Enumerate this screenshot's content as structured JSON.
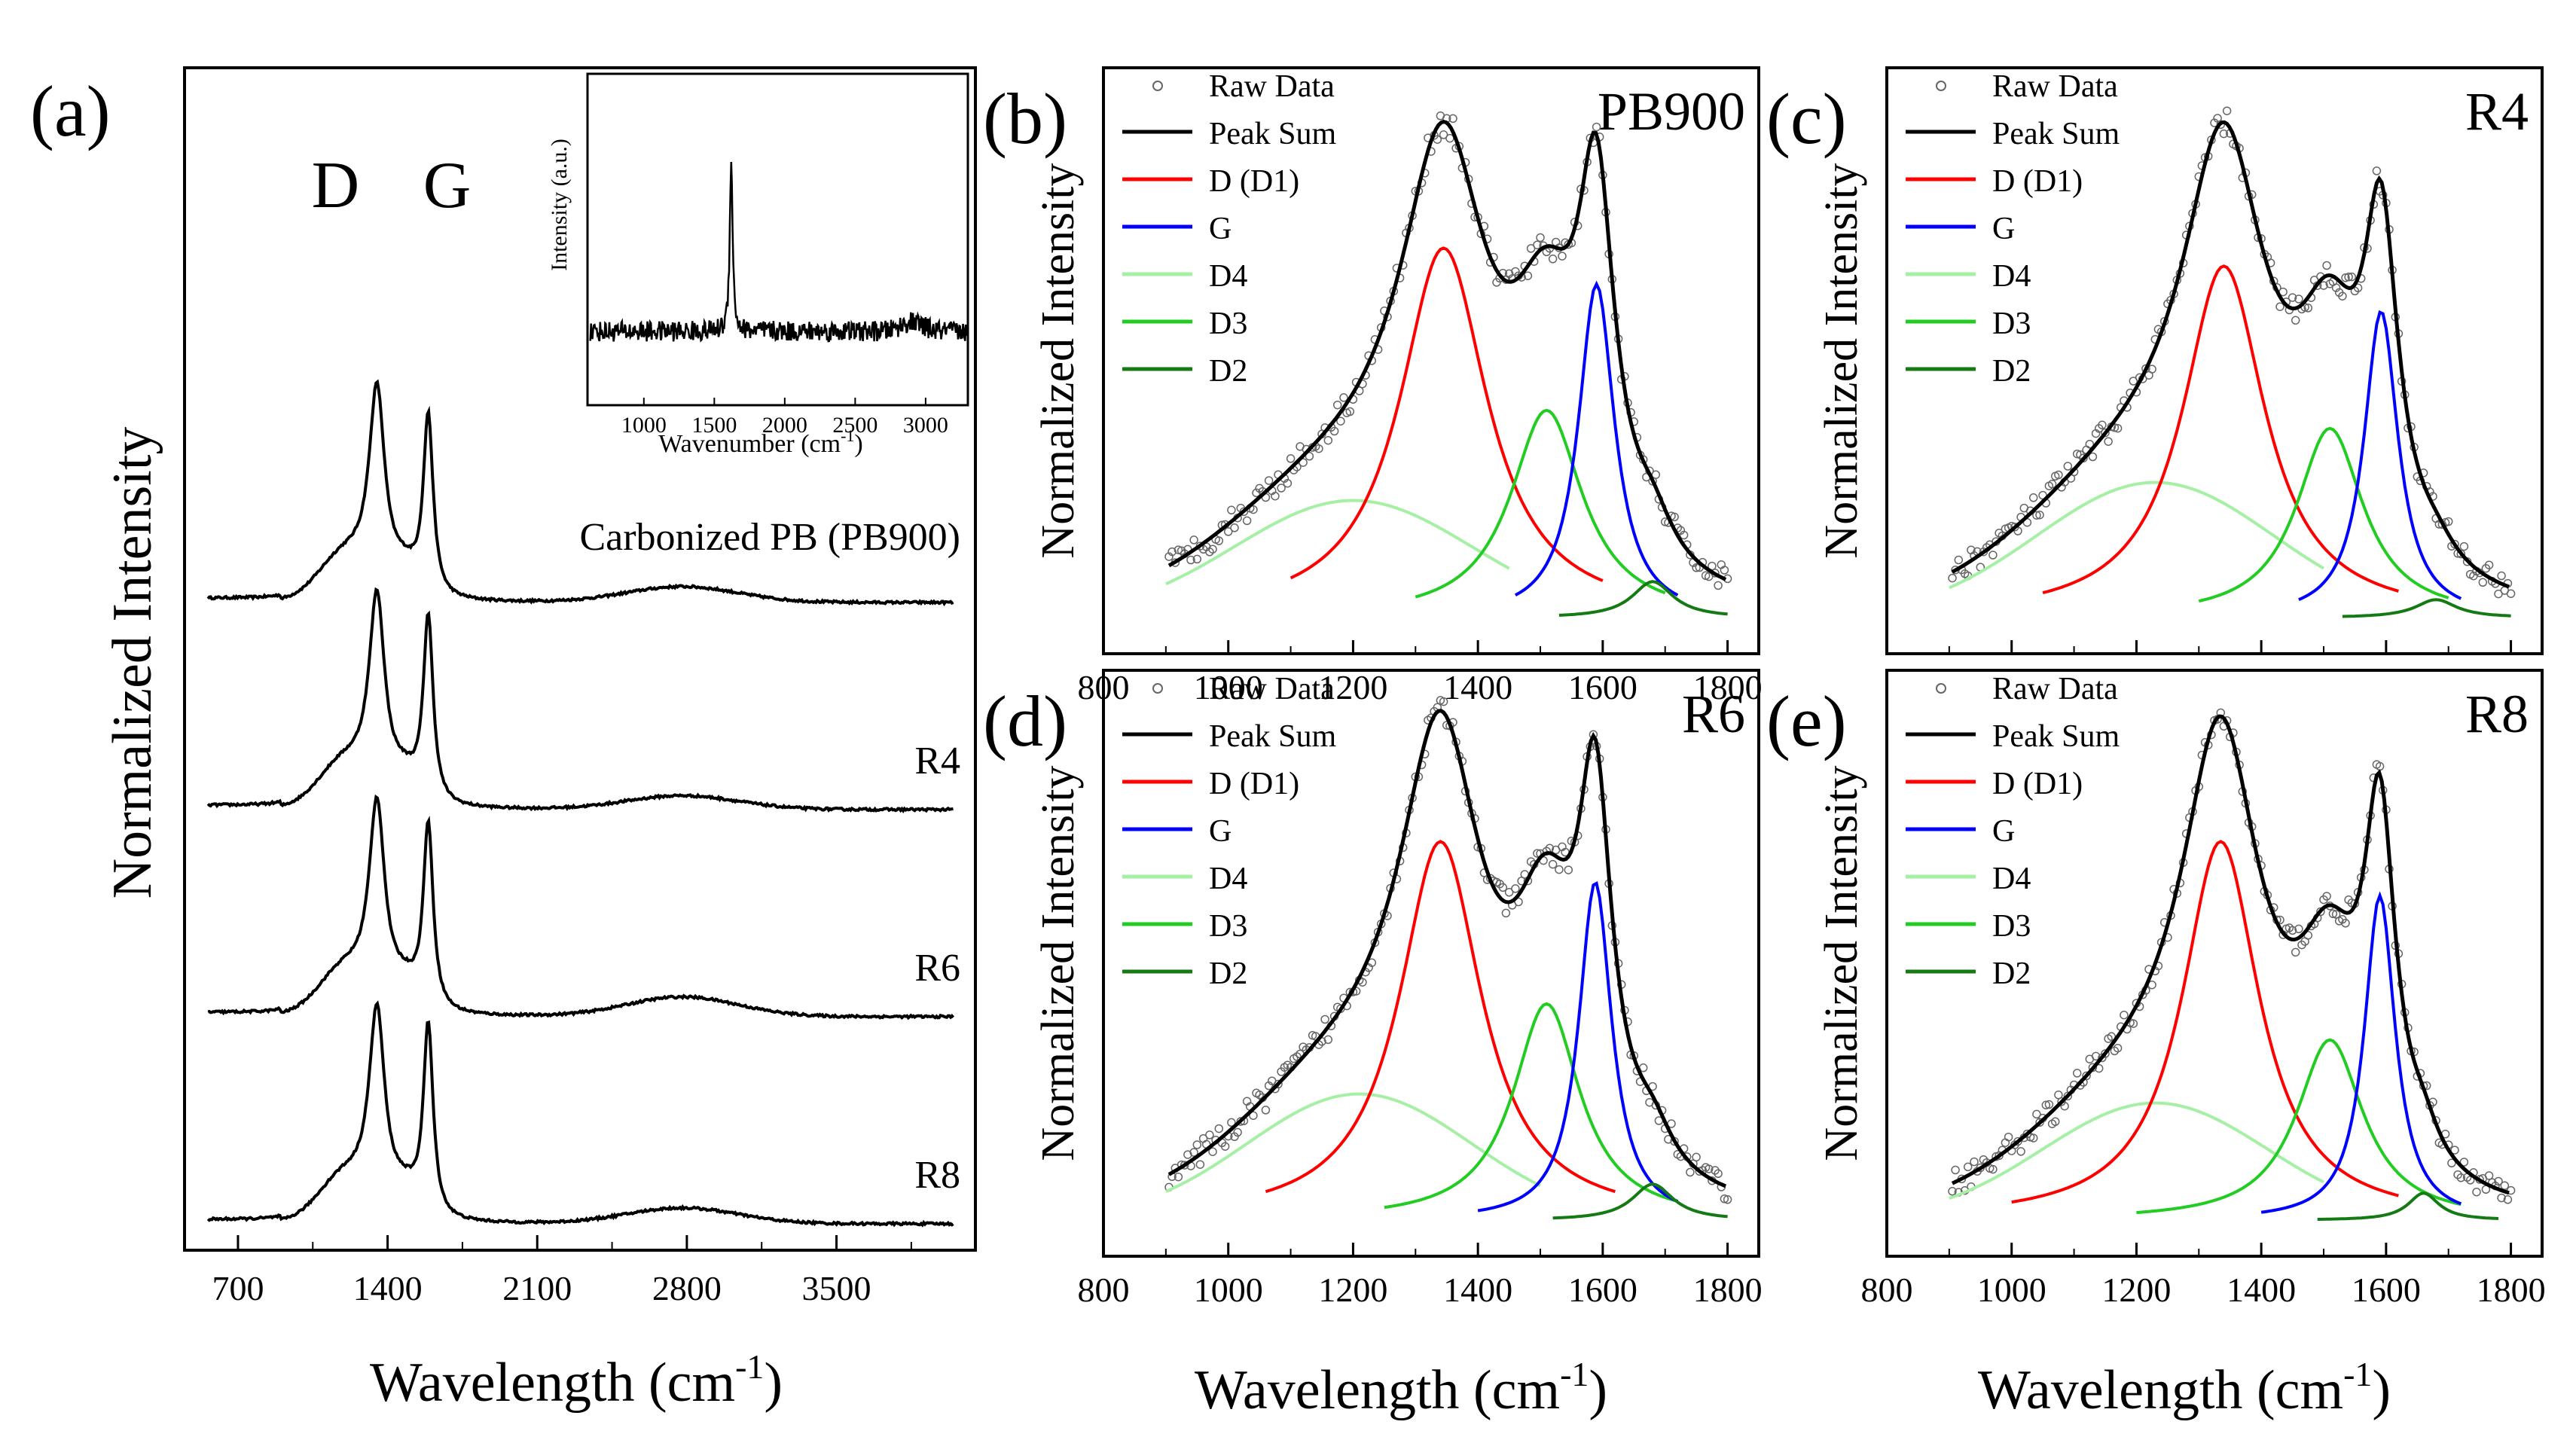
{
  "colors": {
    "raw": "#666666",
    "sum": "#000000",
    "D1": "#ff0000",
    "G": "#0000ff",
    "D4": "#a6f0a6",
    "D3": "#22cc22",
    "D2": "#147a14"
  },
  "chart_data": [
    {
      "panel": "(a)",
      "type": "line",
      "xlabel": "Wavelength (cm-1)",
      "ylabel": "Normalized Intensity",
      "xlim": [
        450,
        4150
      ],
      "xticks": [
        700,
        1400,
        2100,
        2800,
        3500
      ],
      "peak_labels": [
        {
          "text": "D",
          "x": 1350
        },
        {
          "text": "G",
          "x": 1590
        }
      ],
      "series": [
        {
          "name": "Carbonized PB (PB900)",
          "label": "Carbonized PB (PB900)",
          "baseline": 0.0,
          "d_height": 1.0,
          "g_height": 0.92,
          "band2d": 0.08
        },
        {
          "name": "R4",
          "label": "R4",
          "baseline": 0.0,
          "d_height": 1.0,
          "g_height": 0.95,
          "band2d": 0.07
        },
        {
          "name": "R6",
          "label": "R6",
          "baseline": 0.0,
          "d_height": 1.0,
          "g_height": 0.95,
          "band2d": 0.1
        },
        {
          "name": "R8",
          "label": "R8",
          "baseline": 0.0,
          "d_height": 1.0,
          "g_height": 0.98,
          "band2d": 0.08
        }
      ],
      "inset": {
        "xlabel": "Wavenumber (cm-1)",
        "ylabel": "Intensity (a.u.)",
        "xlim": [
          600,
          3300
        ],
        "xticks": [
          1000,
          1500,
          2000,
          2500,
          3000
        ],
        "peak_x": 1620
      }
    },
    {
      "panel": "(b)",
      "title": "PB900",
      "type": "line",
      "xlabel": "Wavelength (cm-1)",
      "ylabel": "Normalized Intensity",
      "xlim": [
        800,
        1850
      ],
      "ylim": [
        -0.08,
        1.22
      ],
      "xticks": [
        800,
        1000,
        1200,
        1400,
        1600,
        1800
      ],
      "legend": [
        "Raw Data",
        "Peak Sum",
        "D (D1)",
        "G",
        "D4",
        "D3",
        "D2"
      ],
      "components": [
        {
          "name": "D4",
          "center": 1200,
          "height": 0.26,
          "width": 190,
          "range": [
            900,
            1450
          ]
        },
        {
          "name": "D (D1)",
          "center": 1345,
          "height": 0.82,
          "width": 85,
          "range": [
            1100,
            1600
          ]
        },
        {
          "name": "D3",
          "center": 1510,
          "height": 0.46,
          "width": 70,
          "range": [
            1300,
            1700
          ]
        },
        {
          "name": "G",
          "center": 1590,
          "height": 0.74,
          "width": 35,
          "range": [
            1460,
            1720
          ]
        },
        {
          "name": "D2",
          "center": 1680,
          "height": 0.08,
          "width": 40,
          "range": [
            1530,
            1800
          ]
        }
      ]
    },
    {
      "panel": "(c)",
      "title": "R4",
      "type": "line",
      "xlabel": "",
      "ylabel": "Normalized Intensity",
      "xlim": [
        800,
        1850
      ],
      "ylim": [
        -0.08,
        1.22
      ],
      "xticks": [],
      "legend": [
        "Raw Data",
        "Peak Sum",
        "D (D1)",
        "G",
        "D4",
        "D3",
        "D2"
      ],
      "components": [
        {
          "name": "D4",
          "center": 1230,
          "height": 0.3,
          "width": 190,
          "range": [
            900,
            1500
          ]
        },
        {
          "name": "D (D1)",
          "center": 1340,
          "height": 0.78,
          "width": 80,
          "range": [
            1050,
            1620
          ]
        },
        {
          "name": "D3",
          "center": 1510,
          "height": 0.42,
          "width": 65,
          "range": [
            1300,
            1700
          ]
        },
        {
          "name": "G",
          "center": 1592,
          "height": 0.68,
          "width": 33,
          "range": [
            1460,
            1720
          ]
        },
        {
          "name": "D2",
          "center": 1680,
          "height": 0.04,
          "width": 40,
          "range": [
            1530,
            1800
          ]
        }
      ]
    },
    {
      "panel": "(d)",
      "title": "R6",
      "type": "line",
      "xlabel": "Wavelength (cm-1)",
      "ylabel": "Normalized Intensity",
      "xlim": [
        800,
        1850
      ],
      "ylim": [
        -0.08,
        1.22
      ],
      "xticks": [
        800,
        1000,
        1200,
        1400,
        1600,
        1800
      ],
      "legend": [
        "Raw Data",
        "Peak Sum",
        "D (D1)",
        "G",
        "D4",
        "D3",
        "D2"
      ],
      "components": [
        {
          "name": "D4",
          "center": 1210,
          "height": 0.28,
          "width": 180,
          "range": [
            900,
            1500
          ]
        },
        {
          "name": "D (D1)",
          "center": 1340,
          "height": 0.84,
          "width": 80,
          "range": [
            1060,
            1620
          ]
        },
        {
          "name": "D3",
          "center": 1510,
          "height": 0.48,
          "width": 65,
          "range": [
            1250,
            1720
          ]
        },
        {
          "name": "G",
          "center": 1588,
          "height": 0.75,
          "width": 32,
          "range": [
            1400,
            1720
          ]
        },
        {
          "name": "D2",
          "center": 1680,
          "height": 0.08,
          "width": 40,
          "range": [
            1520,
            1800
          ]
        }
      ]
    },
    {
      "panel": "(e)",
      "title": "R8",
      "type": "line",
      "xlabel": "Wavelength (cm-1)",
      "ylabel": "Normalized Intensity",
      "xlim": [
        800,
        1850
      ],
      "ylim": [
        -0.08,
        1.22
      ],
      "xticks": [
        800,
        1000,
        1200,
        1400,
        1600,
        1800
      ],
      "legend": [
        "Raw Data",
        "Peak Sum",
        "D (D1)",
        "G",
        "D4",
        "D3",
        "D2"
      ],
      "components": [
        {
          "name": "D4",
          "center": 1230,
          "height": 0.26,
          "width": 180,
          "range": [
            900,
            1500
          ]
        },
        {
          "name": "D (D1)",
          "center": 1335,
          "height": 0.84,
          "width": 75,
          "range": [
            1000,
            1620
          ]
        },
        {
          "name": "D3",
          "center": 1510,
          "height": 0.4,
          "width": 65,
          "range": [
            1200,
            1720
          ]
        },
        {
          "name": "G",
          "center": 1590,
          "height": 0.72,
          "width": 30,
          "range": [
            1400,
            1720
          ]
        },
        {
          "name": "D2",
          "center": 1660,
          "height": 0.06,
          "width": 30,
          "range": [
            1490,
            1780
          ]
        }
      ]
    }
  ]
}
